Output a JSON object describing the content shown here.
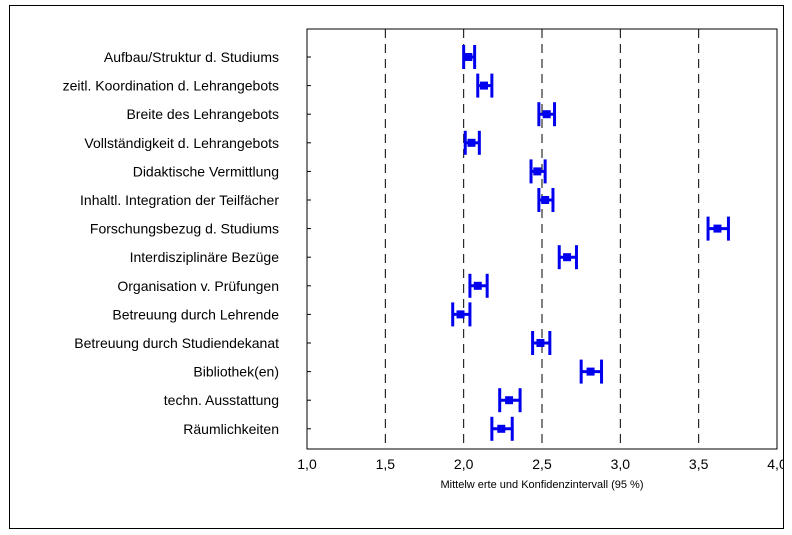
{
  "chart_data": {
    "type": "errorbar",
    "orientation": "horizontal",
    "categories": [
      "Aufbau/Struktur d. Studiums",
      "zeitl. Koordination d. Lehrangebots",
      "Breite des Lehrangebots",
      "Vollständigkeit d. Lehrangebots",
      "Didaktische Vermittlung",
      "Inhaltl. Integration der Teilfächer",
      "Forschungsbezug d. Studiums",
      "Interdisziplinäre Bezüge",
      "Organisation v. Prüfungen",
      "Betreuung durch Lehrende",
      "Betreuung durch Studiendekanat",
      "Bibliothek(en)",
      "techn. Ausstattung",
      "Räumlichkeiten"
    ],
    "means": [
      2.03,
      2.13,
      2.53,
      2.05,
      2.47,
      2.52,
      3.62,
      2.66,
      2.09,
      1.98,
      2.49,
      2.81,
      2.29,
      2.24
    ],
    "lower": [
      2.0,
      2.09,
      2.48,
      2.01,
      2.43,
      2.48,
      3.56,
      2.61,
      2.04,
      1.93,
      2.44,
      2.75,
      2.23,
      2.18
    ],
    "upper": [
      2.07,
      2.18,
      2.58,
      2.1,
      2.52,
      2.57,
      3.69,
      2.72,
      2.15,
      2.04,
      2.55,
      2.88,
      2.36,
      2.31
    ],
    "xlim": [
      1.0,
      4.0
    ],
    "x_ticks": [
      "1,0",
      "1,5",
      "2,0",
      "2,5",
      "3,0",
      "3,5",
      "4,0"
    ],
    "x_tick_values": [
      1.0,
      1.5,
      2.0,
      2.5,
      3.0,
      3.5,
      4.0
    ],
    "vertical_gridlines": "dashed",
    "marker_color": "#0000ee",
    "xlabel": "Mittelw erte und Konfidenzintervall (95 %)"
  }
}
